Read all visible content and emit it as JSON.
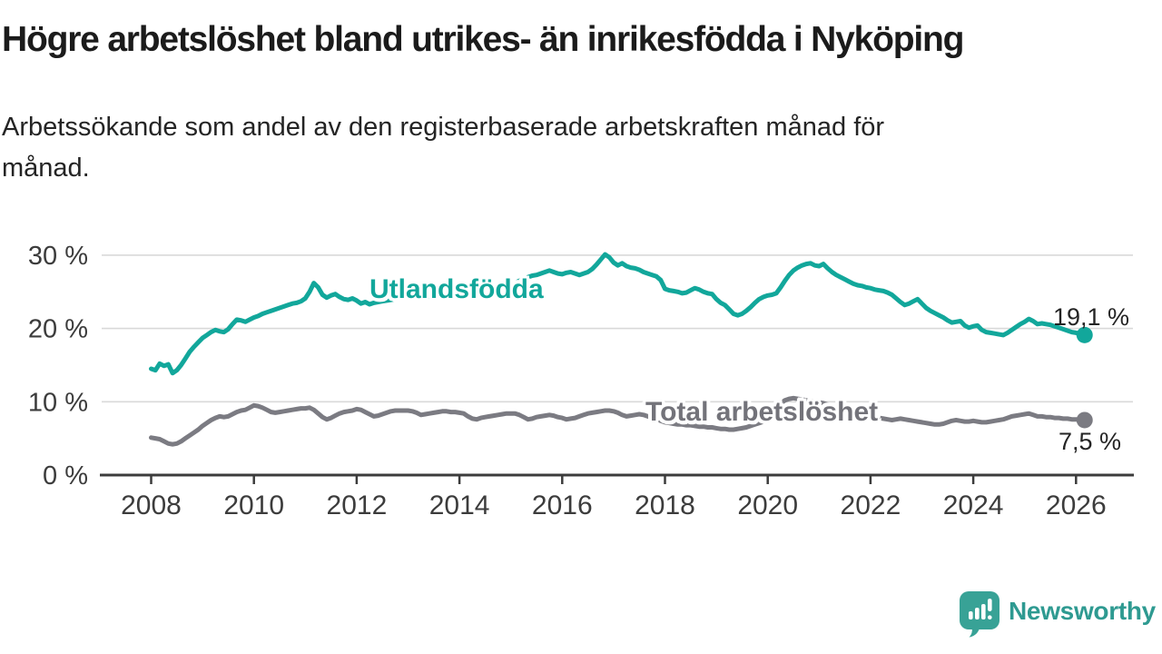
{
  "header": {
    "title": "Högre arbetslöshet bland utrikes- än inrikesfödda i Nyköping",
    "subtitle_line1": "Arbetssökande som andel av den registerbaserade arbetskraften månad för",
    "subtitle_line2": "månad."
  },
  "chart_data": {
    "type": "line",
    "title": "Högre arbetslöshet bland utrikes- än inrikesfödda i Nyköping",
    "subtitle": "Arbetssökande som andel av den registerbaserade arbetskraften månad för månad.",
    "grid": true,
    "legend_position": "inline-labels-on-lines",
    "x_axis": {
      "unit": "year",
      "range_years": [
        2008.0,
        2026.25
      ],
      "ticks": [
        2008,
        2010,
        2012,
        2014,
        2016,
        2018,
        2020,
        2022,
        2024,
        2026
      ],
      "tick_labels": [
        "2008",
        "2010",
        "2012",
        "2014",
        "2016",
        "2018",
        "2020",
        "2022",
        "2024",
        "2026"
      ]
    },
    "y_axis": {
      "unit": "percent",
      "range": [
        0,
        32
      ],
      "ticks": [
        0,
        10,
        20,
        30
      ],
      "tick_labels": [
        "0 %",
        "10 %",
        "20 %",
        "30 %"
      ]
    },
    "colors": {
      "teal_series": "#12a79b",
      "gray_series": "#7b7b82",
      "gridline": "#d9d9d9",
      "axis": "#3c3c3c",
      "axis_text": "#3c3c3c",
      "annotation_text": "#242424"
    },
    "series": [
      {
        "name": "Utlandsfödda",
        "color": "#12a79b",
        "end_label": "19,1 %",
        "end_value": 19.1,
        "start_decimal_year": 2008.0,
        "points_per_year": 12,
        "values": [
          14.5,
          14.3,
          15.2,
          14.9,
          15.1,
          13.9,
          14.3,
          15.0,
          15.9,
          16.8,
          17.5,
          18.1,
          18.7,
          19.1,
          19.5,
          19.8,
          19.6,
          19.5,
          19.9,
          20.6,
          21.2,
          21.1,
          20.9,
          21.2,
          21.5,
          21.7,
          22.0,
          22.2,
          22.4,
          22.6,
          22.8,
          23.0,
          23.2,
          23.4,
          23.5,
          23.7,
          24.1,
          25.0,
          26.2,
          25.6,
          24.6,
          24.2,
          24.5,
          24.7,
          24.3,
          24.0,
          23.9,
          24.1,
          23.8,
          23.4,
          23.6,
          23.3,
          23.5,
          23.6,
          23.7,
          23.8,
          23.9,
          24.0,
          24.1,
          24.2,
          24.2,
          24.3,
          24.4,
          24.4,
          24.3,
          24.3,
          24.4,
          24.4,
          24.5,
          24.5,
          24.6,
          24.6,
          24.7,
          24.7,
          24.8,
          24.9,
          25.0,
          25.0,
          25.1,
          25.2,
          25.3,
          25.5,
          25.6,
          25.8,
          26.0,
          26.2,
          26.5,
          26.8,
          27.0,
          27.2,
          27.3,
          27.5,
          27.7,
          27.9,
          27.7,
          27.5,
          27.4,
          27.6,
          27.7,
          27.5,
          27.3,
          27.5,
          27.7,
          28.1,
          28.7,
          29.4,
          30.1,
          29.7,
          29.0,
          28.6,
          28.9,
          28.5,
          28.3,
          28.2,
          28.0,
          27.7,
          27.5,
          27.3,
          27.1,
          26.6,
          25.4,
          25.2,
          25.1,
          25.0,
          24.8,
          24.9,
          25.2,
          25.5,
          25.3,
          25.0,
          24.8,
          24.7,
          24.0,
          23.5,
          23.2,
          22.6,
          22.0,
          21.8,
          22.0,
          22.4,
          22.9,
          23.5,
          24.0,
          24.3,
          24.5,
          24.6,
          24.8,
          25.6,
          26.5,
          27.3,
          27.9,
          28.3,
          28.6,
          28.8,
          28.9,
          28.6,
          28.5,
          28.8,
          28.2,
          27.7,
          27.3,
          27.0,
          26.7,
          26.4,
          26.1,
          25.9,
          25.8,
          25.6,
          25.5,
          25.3,
          25.2,
          25.1,
          24.9,
          24.6,
          24.1,
          23.6,
          23.2,
          23.4,
          23.7,
          24.0,
          23.4,
          22.8,
          22.4,
          22.1,
          21.8,
          21.5,
          21.1,
          20.8,
          20.9,
          21.0,
          20.4,
          20.1,
          20.3,
          20.4,
          19.8,
          19.5,
          19.4,
          19.3,
          19.2,
          19.1,
          19.4,
          19.8,
          20.2,
          20.6,
          20.9,
          21.3,
          21.0,
          20.6,
          20.7,
          20.6,
          20.5,
          20.3,
          20.1,
          19.9,
          19.7,
          19.5,
          19.4,
          19.2,
          19.1
        ]
      },
      {
        "name": "Total arbetslöshet",
        "color": "#7b7b82",
        "end_label": "7,5 %",
        "end_value": 7.5,
        "start_decimal_year": 2008.0,
        "points_per_year": 12,
        "values": [
          5.1,
          5.0,
          4.9,
          4.6,
          4.3,
          4.2,
          4.3,
          4.6,
          5.0,
          5.4,
          5.8,
          6.2,
          6.7,
          7.1,
          7.5,
          7.8,
          8.0,
          7.9,
          8.0,
          8.3,
          8.6,
          8.8,
          8.9,
          9.2,
          9.5,
          9.4,
          9.2,
          8.9,
          8.6,
          8.5,
          8.6,
          8.7,
          8.8,
          8.9,
          9.0,
          9.1,
          9.1,
          9.2,
          8.9,
          8.4,
          7.9,
          7.6,
          7.8,
          8.1,
          8.4,
          8.6,
          8.7,
          8.8,
          9.0,
          8.9,
          8.6,
          8.3,
          8.0,
          8.1,
          8.3,
          8.5,
          8.7,
          8.8,
          8.8,
          8.8,
          8.8,
          8.7,
          8.5,
          8.2,
          8.3,
          8.4,
          8.5,
          8.6,
          8.7,
          8.7,
          8.6,
          8.6,
          8.5,
          8.4,
          8.0,
          7.7,
          7.6,
          7.8,
          7.9,
          8.0,
          8.1,
          8.2,
          8.3,
          8.4,
          8.4,
          8.4,
          8.2,
          7.9,
          7.6,
          7.7,
          7.9,
          8.0,
          8.1,
          8.2,
          8.1,
          7.9,
          7.8,
          7.6,
          7.7,
          7.8,
          8.0,
          8.2,
          8.4,
          8.5,
          8.6,
          8.7,
          8.8,
          8.8,
          8.7,
          8.5,
          8.2,
          8.0,
          8.1,
          8.2,
          8.3,
          8.2,
          8.0,
          7.8,
          7.6,
          7.4,
          7.2,
          7.1,
          7.0,
          6.9,
          6.9,
          6.8,
          6.8,
          6.7,
          6.6,
          6.6,
          6.5,
          6.5,
          6.4,
          6.3,
          6.3,
          6.2,
          6.2,
          6.3,
          6.4,
          6.5,
          6.7,
          6.9,
          7.1,
          7.3,
          7.6,
          8.2,
          9.0,
          9.7,
          10.2,
          10.4,
          10.5,
          10.4,
          10.3,
          10.2,
          10.1,
          10.0,
          9.9,
          9.8,
          9.6,
          9.4,
          9.2,
          9.0,
          8.8,
          8.6,
          8.5,
          8.3,
          8.2,
          8.1,
          8.0,
          7.9,
          7.8,
          7.7,
          7.6,
          7.5,
          7.6,
          7.7,
          7.6,
          7.5,
          7.4,
          7.3,
          7.2,
          7.1,
          7.0,
          6.9,
          6.9,
          7.0,
          7.2,
          7.4,
          7.5,
          7.4,
          7.3,
          7.3,
          7.4,
          7.3,
          7.2,
          7.2,
          7.3,
          7.4,
          7.5,
          7.6,
          7.8,
          8.0,
          8.1,
          8.2,
          8.3,
          8.4,
          8.2,
          8.0,
          8.0,
          7.9,
          7.9,
          7.8,
          7.8,
          7.7,
          7.7,
          7.6,
          7.6,
          7.5,
          7.5
        ]
      }
    ]
  },
  "footer": {
    "brand": "Newsworthy",
    "logo_icon": "newsworthy-speech-bubble-bar-chart-icon"
  }
}
